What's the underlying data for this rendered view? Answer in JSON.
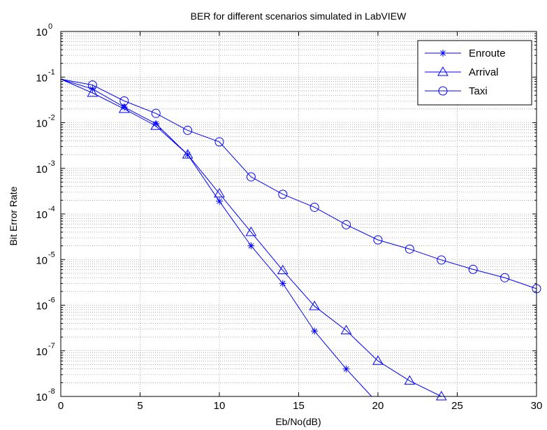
{
  "chart_data": {
    "type": "line",
    "title": "BER for different scenarios simulated in LabVIEW",
    "xlabel": "Eb/No(dB)",
    "ylabel": "Bit Error Rate",
    "xlim": [
      0,
      30
    ],
    "ylim": [
      1e-08,
      1
    ],
    "yscale": "log",
    "grid": true,
    "legend_position": "top-right",
    "x_ticks": [
      0,
      5,
      10,
      15,
      20,
      25,
      30
    ],
    "y_tick_exponents": [
      0,
      -1,
      -2,
      -3,
      -4,
      -5,
      -6,
      -7,
      -8
    ],
    "series": [
      {
        "name": "Enroute",
        "marker": "asterisk",
        "color": "#0000ff",
        "x": [
          0,
          2,
          4,
          6,
          8,
          10,
          12,
          14,
          16,
          18,
          19.6
        ],
        "y": [
          0.09,
          0.055,
          0.022,
          0.0095,
          0.002,
          0.00019,
          2e-05,
          3e-06,
          2.7e-07,
          4e-08,
          1e-08
        ]
      },
      {
        "name": "Arrival",
        "marker": "triangle",
        "color": "#0000ff",
        "x": [
          0,
          2,
          4,
          6,
          8,
          10,
          12,
          14,
          16,
          18,
          20,
          22,
          24
        ],
        "y": [
          0.09,
          0.045,
          0.02,
          0.0085,
          0.002,
          0.00028,
          4e-05,
          5.8e-06,
          9.5e-07,
          2.8e-07,
          6e-08,
          2.2e-08,
          1e-08
        ]
      },
      {
        "name": "Taxi",
        "marker": "circle",
        "color": "#0000ff",
        "x": [
          0,
          2,
          4,
          6,
          8,
          10,
          12,
          14,
          16,
          18,
          20,
          22,
          24,
          26,
          28,
          30
        ],
        "y": [
          0.09,
          0.067,
          0.03,
          0.016,
          0.0068,
          0.0038,
          0.00065,
          0.00027,
          0.00014,
          5.8e-05,
          2.7e-05,
          1.7e-05,
          9.8e-06,
          6.1e-06,
          4e-06,
          2.3e-06
        ]
      }
    ]
  }
}
